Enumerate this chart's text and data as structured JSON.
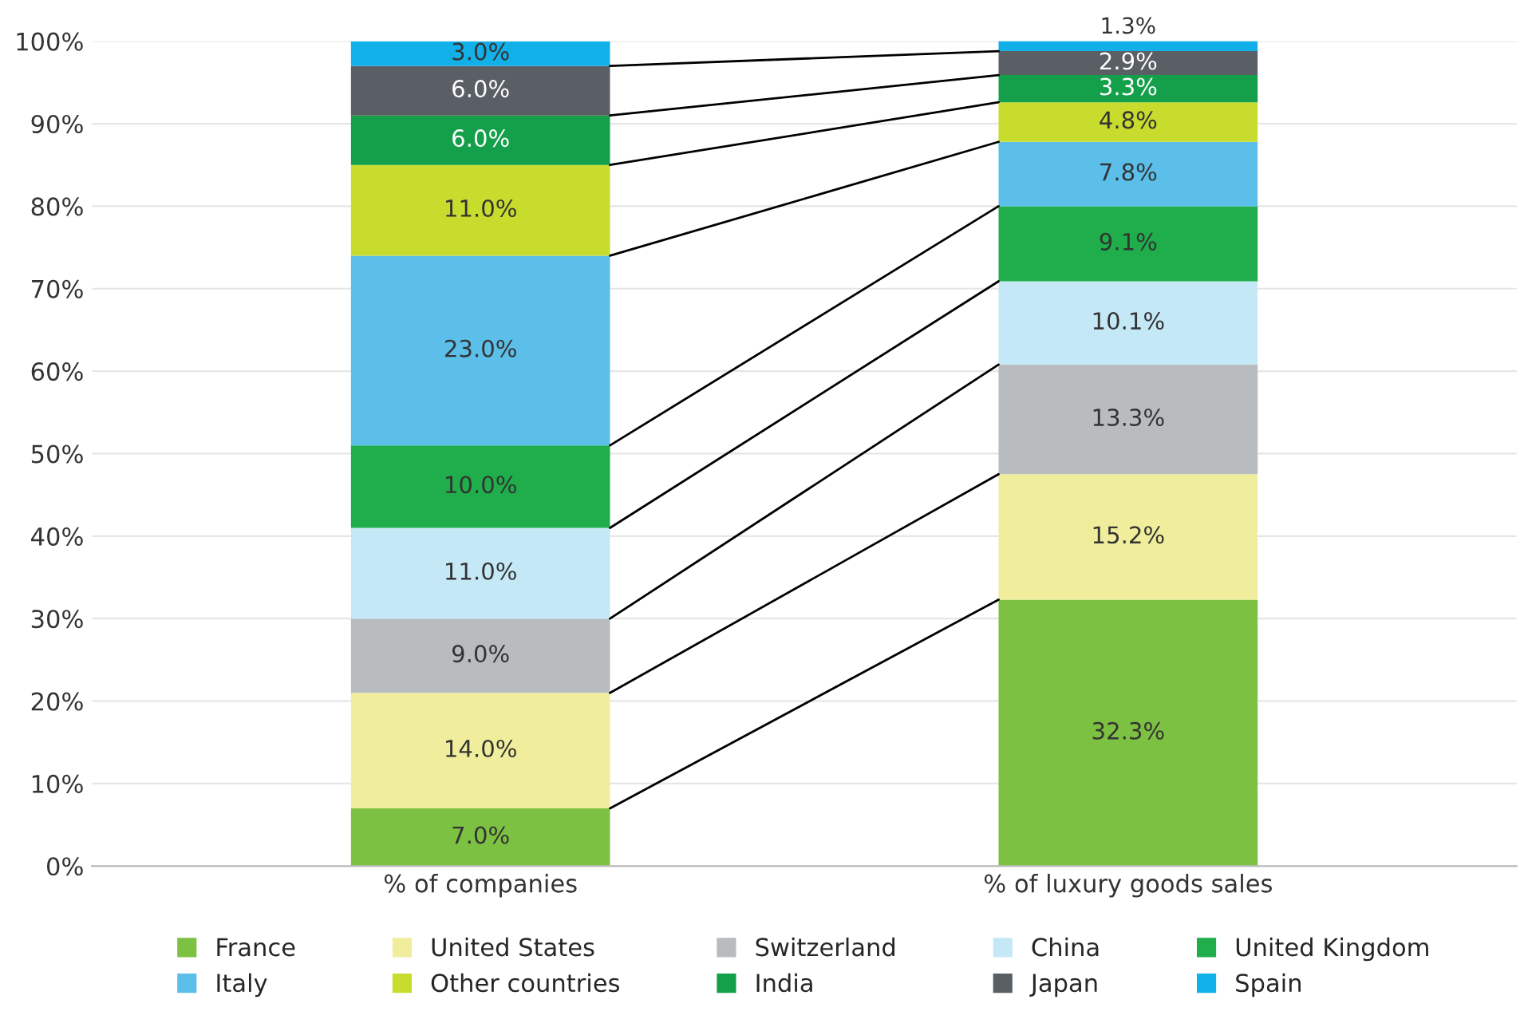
{
  "chart_data": {
    "type": "bar",
    "stacked": true,
    "categories": [
      "% of companies",
      "% of luxury goods sales"
    ],
    "ylim": [
      0,
      100
    ],
    "yticks": [
      {
        "value": 0,
        "label": "0%"
      },
      {
        "value": 10,
        "label": "10%"
      },
      {
        "value": 20,
        "label": "20%"
      },
      {
        "value": 30,
        "label": "30%"
      },
      {
        "value": 40,
        "label": "40%"
      },
      {
        "value": 50,
        "label": "50%"
      },
      {
        "value": 60,
        "label": "60%"
      },
      {
        "value": 70,
        "label": "70%"
      },
      {
        "value": 80,
        "label": "80%"
      },
      {
        "value": 90,
        "label": "90%"
      },
      {
        "value": 100,
        "label": "100%"
      }
    ],
    "grid": "y",
    "legend": "bottom",
    "series": [
      {
        "name": "France",
        "color": "#7dc142",
        "values": [
          7.0,
          32.3
        ],
        "value_labels": [
          "7.0%",
          "32.3%"
        ]
      },
      {
        "name": "United States",
        "color": "#f0ee9c",
        "values": [
          14.0,
          15.2
        ],
        "value_labels": [
          "14.0%",
          "15.2%"
        ]
      },
      {
        "name": "Switzerland",
        "color": "#b8bcbe",
        "values": [
          9.0,
          13.3
        ],
        "value_labels": [
          "9.0%",
          "13.3%"
        ]
      },
      {
        "name": "China",
        "color": "#c5e8f7",
        "values": [
          11.0,
          10.1
        ],
        "value_labels": [
          "11.0%",
          "10.1%"
        ]
      },
      {
        "name": "United Kingdom",
        "color": "#1fae4b",
        "values": [
          10.0,
          9.1
        ],
        "value_labels": [
          "10.0%",
          "9.1%"
        ]
      },
      {
        "name": "Italy",
        "color": "#5bbfe9",
        "values": [
          23.0,
          7.8
        ],
        "value_labels": [
          "23.0%",
          "7.8%"
        ]
      },
      {
        "name": "Other countries",
        "color": "#c8dc2e",
        "values": [
          11.0,
          4.8
        ],
        "value_labels": [
          "11.0%",
          "4.8%"
        ]
      },
      {
        "name": "India",
        "color": "#14a04a",
        "values": [
          6.0,
          3.3
        ],
        "value_labels": [
          "6.0%",
          "3.3%"
        ]
      },
      {
        "name": "Japan",
        "color": "#5a5f66",
        "values": [
          6.0,
          2.9
        ],
        "value_labels": [
          "6.0%",
          "2.9%"
        ]
      },
      {
        "name": "Spain",
        "color": "#12b0e8",
        "values": [
          3.0,
          1.3
        ],
        "value_labels": [
          "3.0%",
          "1.3%"
        ]
      }
    ]
  }
}
